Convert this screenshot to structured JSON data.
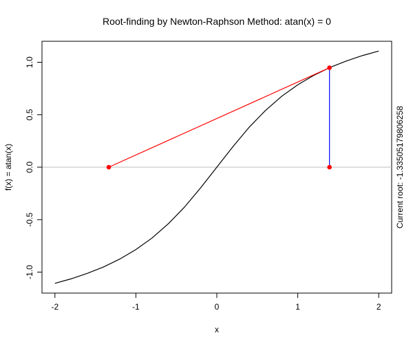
{
  "chart_data": {
    "type": "line",
    "title": "Root-finding by Newton-Raphson Method: atan(x) = 0",
    "xlabel": "x",
    "ylabel": "f(x) = atan(x)",
    "right_label": "Current root: -1.33505179806258",
    "xlim": [
      -2.16,
      2.16
    ],
    "ylim": [
      -1.2,
      1.2
    ],
    "x_ticks": [
      -2,
      -1,
      0,
      1,
      2
    ],
    "x_tick_labels": [
      "-2",
      "-1",
      "0",
      "1",
      "2"
    ],
    "y_ticks": [
      -1.0,
      -0.5,
      0.0,
      0.5,
      1.0
    ],
    "y_tick_labels": [
      "-1.0",
      "-0.5",
      "0.0",
      "0.5",
      "1.0"
    ],
    "grid": false,
    "series": [
      {
        "values_desc": "",
        "x": [
          -2.0,
          -1.8,
          -1.6,
          -1.4,
          -1.2,
          -1.0,
          -0.8,
          -0.6,
          -0.4,
          -0.2,
          0.0,
          0.2,
          0.4,
          0.6,
          0.8,
          1.0,
          1.2,
          1.4,
          1.6,
          1.8,
          2.0
        ],
        "y": [
          -1.107,
          -1.064,
          -1.012,
          -0.951,
          -0.876,
          -0.785,
          -0.675,
          -0.54,
          -0.381,
          -0.197,
          0.0,
          0.197,
          0.381,
          0.54,
          0.675,
          0.785,
          0.876,
          0.951,
          1.012,
          1.064,
          1.107
        ],
        "color": "#000000"
      }
    ],
    "reference_line": {
      "y": 0,
      "color": "#bebebe"
    },
    "tangent_line": {
      "x": [
        -1.335,
        1.3917
      ],
      "y": [
        0,
        0.9478
      ],
      "color": "#ff0000"
    },
    "vertical_segment": {
      "x": 1.3917,
      "y": [
        0,
        0.9478
      ],
      "color": "#0000ff"
    },
    "points": [
      {
        "x": -1.335,
        "y": 0,
        "color": "#ff0000"
      },
      {
        "x": 1.3917,
        "y": 0,
        "color": "#ff0000"
      },
      {
        "x": 1.3917,
        "y": 0.9478,
        "color": "#ff0000"
      }
    ]
  }
}
